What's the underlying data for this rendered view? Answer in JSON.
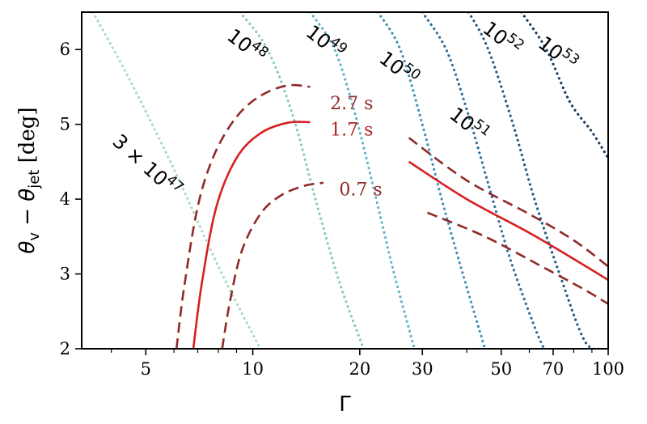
{
  "chart_data": {
    "type": "line",
    "xlabel": "Γ",
    "ylabel": "θv − θjet [deg]",
    "xscale": "log",
    "xlim": [
      3.3,
      100
    ],
    "ylim": [
      2,
      6.5
    ],
    "grid": false,
    "x_ticks": [
      {
        "value": 5,
        "label": "5"
      },
      {
        "value": 10,
        "label": "10"
      },
      {
        "value": 20,
        "label": "20"
      },
      {
        "value": 30,
        "label": "30"
      },
      {
        "value": 50,
        "label": "50"
      },
      {
        "value": 70,
        "label": "70"
      },
      {
        "value": 100,
        "label": "100"
      }
    ],
    "x_minor_ticks": [
      4,
      6,
      7,
      8,
      9,
      40,
      60,
      80,
      90
    ],
    "y_ticks": [
      {
        "value": 2,
        "label": "2"
      },
      {
        "value": 3,
        "label": "3"
      },
      {
        "value": 4,
        "label": "4"
      },
      {
        "value": 5,
        "label": "5"
      },
      {
        "value": 6,
        "label": "6"
      }
    ],
    "contours": [
      {
        "label_base": "3 × 10",
        "label_exp": "47",
        "color": "#a8d8cf",
        "points": [
          [
            3.55,
            6.5
          ],
          [
            4.5,
            5.6
          ],
          [
            6,
            4.4
          ],
          [
            8,
            3.1
          ],
          [
            10.5,
            2.0
          ]
        ],
        "label_at": [
          4.0,
          4.75
        ],
        "label_rot": 42
      },
      {
        "label_base": "10",
        "label_exp": "48",
        "color": "#86c9c4",
        "points": [
          [
            9.2,
            6.5
          ],
          [
            11,
            6.0
          ],
          [
            13,
            5.1
          ],
          [
            15,
            4.0
          ],
          [
            17.5,
            2.9
          ],
          [
            20.5,
            2.0
          ]
        ],
        "label_at": [
          8.4,
          6.15
        ],
        "label_rot": 38
      },
      {
        "label_base": "10",
        "label_exp": "49",
        "color": "#5fb3c8",
        "points": [
          [
            14.5,
            6.5
          ],
          [
            17,
            6.0
          ],
          [
            19.5,
            5.1
          ],
          [
            22,
            4.1
          ],
          [
            25,
            3.0
          ],
          [
            28.5,
            2.0
          ]
        ],
        "label_at": [
          14.0,
          6.2
        ],
        "label_rot": 38
      },
      {
        "label_base": "10",
        "label_exp": "50",
        "color": "#3b8fb7",
        "points": [
          [
            22.5,
            6.5
          ],
          [
            26,
            6.0
          ],
          [
            30,
            5.0
          ],
          [
            34,
            4.0
          ],
          [
            39,
            3.0
          ],
          [
            45,
            2.0
          ]
        ],
        "label_at": [
          22.5,
          5.85
        ],
        "label_rot": 38
      },
      {
        "label_base": "10",
        "label_exp": "51",
        "color": "#2b6d9d",
        "points": [
          [
            30,
            6.5
          ],
          [
            35,
            6.0
          ],
          [
            40,
            5.2
          ],
          [
            46,
            4.2
          ],
          [
            53,
            3.2
          ],
          [
            62,
            2.3
          ],
          [
            66,
            2.0
          ]
        ],
        "label_at": [
          35.5,
          5.1
        ],
        "label_rot": 38
      },
      {
        "label_base": "10",
        "label_exp": "52",
        "color": "#1e5a86",
        "points": [
          [
            40.5,
            6.5
          ],
          [
            46,
            6.0
          ],
          [
            54,
            5.0
          ],
          [
            62,
            4.0
          ],
          [
            73,
            3.0
          ],
          [
            86,
            2.1
          ],
          [
            97,
            2.0
          ]
        ],
        "label_at": [
          44.0,
          6.25
        ],
        "label_rot": 38
      },
      {
        "label_base": "10",
        "label_exp": "53",
        "color": "#14395d",
        "points": [
          [
            57,
            6.5
          ],
          [
            67,
            6.0
          ],
          [
            78,
            5.3
          ],
          [
            90,
            4.9
          ],
          [
            100,
            4.55
          ]
        ],
        "label_at": [
          63.0,
          6.05
        ],
        "label_rot": 38
      }
    ],
    "series": [
      {
        "name": "1.7 s",
        "color": "#d6201f",
        "dash": "solid",
        "width": 2.6,
        "points": [
          [
            6.8,
            2.0
          ],
          [
            7.2,
            2.9
          ],
          [
            7.9,
            3.9
          ],
          [
            9.0,
            4.55
          ],
          [
            10.5,
            4.88
          ],
          [
            12.5,
            5.02
          ],
          [
            14.5,
            5.03
          ]
        ]
      },
      {
        "name": "2.7 s",
        "color": "#8f2a28",
        "dash": "dashed",
        "width": 2.6,
        "points": [
          [
            6.1,
            2.0
          ],
          [
            6.4,
            2.8
          ],
          [
            7.0,
            3.9
          ],
          [
            7.8,
            4.6
          ],
          [
            9.0,
            5.1
          ],
          [
            10.5,
            5.38
          ],
          [
            12.5,
            5.52
          ],
          [
            14.5,
            5.5
          ]
        ]
      },
      {
        "name": "0.7 s",
        "color": "#8f2a28",
        "dash": "dashed",
        "width": 2.6,
        "points": [
          [
            8.2,
            2.0
          ],
          [
            8.6,
            2.6
          ],
          [
            9.3,
            3.3
          ],
          [
            10.5,
            3.8
          ],
          [
            12.0,
            4.05
          ],
          [
            14.0,
            4.18
          ],
          [
            15.8,
            4.22
          ]
        ]
      },
      {
        "name": "",
        "color": "#d6201f",
        "dash": "solid",
        "width": 2.6,
        "points": [
          [
            27.5,
            4.5
          ],
          [
            40,
            4.0
          ],
          [
            60,
            3.55
          ],
          [
            80,
            3.2
          ],
          [
            100,
            2.92
          ]
        ]
      },
      {
        "name": "",
        "color": "#8f2a28",
        "dash": "dashed",
        "width": 2.6,
        "points": [
          [
            27.5,
            4.82
          ],
          [
            40,
            4.25
          ],
          [
            60,
            3.8
          ],
          [
            80,
            3.45
          ],
          [
            100,
            3.1
          ]
        ]
      },
      {
        "name": "",
        "color": "#8f2a28",
        "dash": "dashed",
        "width": 2.6,
        "points": [
          [
            31,
            3.82
          ],
          [
            45,
            3.5
          ],
          [
            65,
            3.1
          ],
          [
            85,
            2.8
          ],
          [
            100,
            2.6
          ]
        ]
      }
    ],
    "annotations": [
      {
        "text": "2.7 s",
        "x": 16.5,
        "y": 5.2,
        "color": "#8f2a28"
      },
      {
        "text": "1.7 s",
        "x": 16.5,
        "y": 4.85,
        "color": "#b22222"
      },
      {
        "text": "0.7 s",
        "x": 17.5,
        "y": 4.05,
        "color": "#8f2a28"
      }
    ]
  }
}
